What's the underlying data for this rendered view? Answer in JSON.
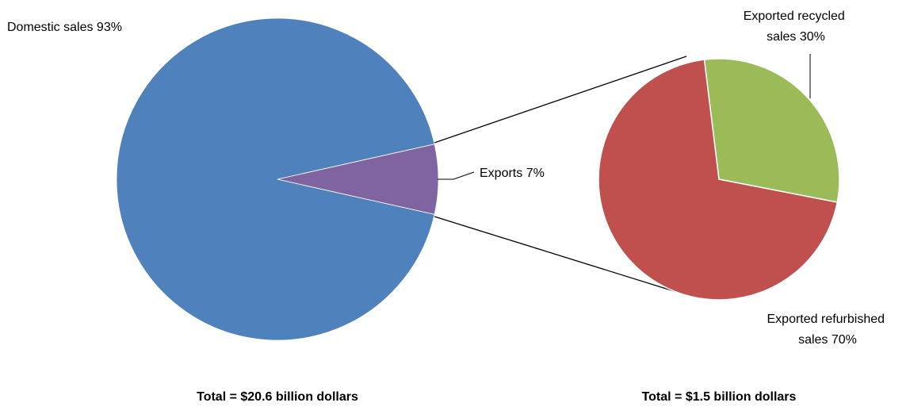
{
  "chart_data": [
    {
      "type": "pie",
      "slices": [
        {
          "label": "Domestic sales 93%",
          "value": 93,
          "color": "#4F81BD"
        },
        {
          "label": "Exports 7%",
          "value": 7,
          "color": "#8064A2"
        }
      ],
      "total_label": "Total = $20.6 billion dollars"
    },
    {
      "type": "pie",
      "slices": [
        {
          "label_lines": [
            "Exported recycled",
            "sales 30%"
          ],
          "value": 30,
          "color": "#9BBB59"
        },
        {
          "label_lines": [
            "Exported refurbished",
            "sales 70%"
          ],
          "value": 70,
          "color": "#C0504D"
        }
      ],
      "total_label": "Total = $1.5 billion dollars"
    }
  ],
  "colors": {
    "connector_line": "#000000",
    "slice_border": "#ffffff"
  }
}
